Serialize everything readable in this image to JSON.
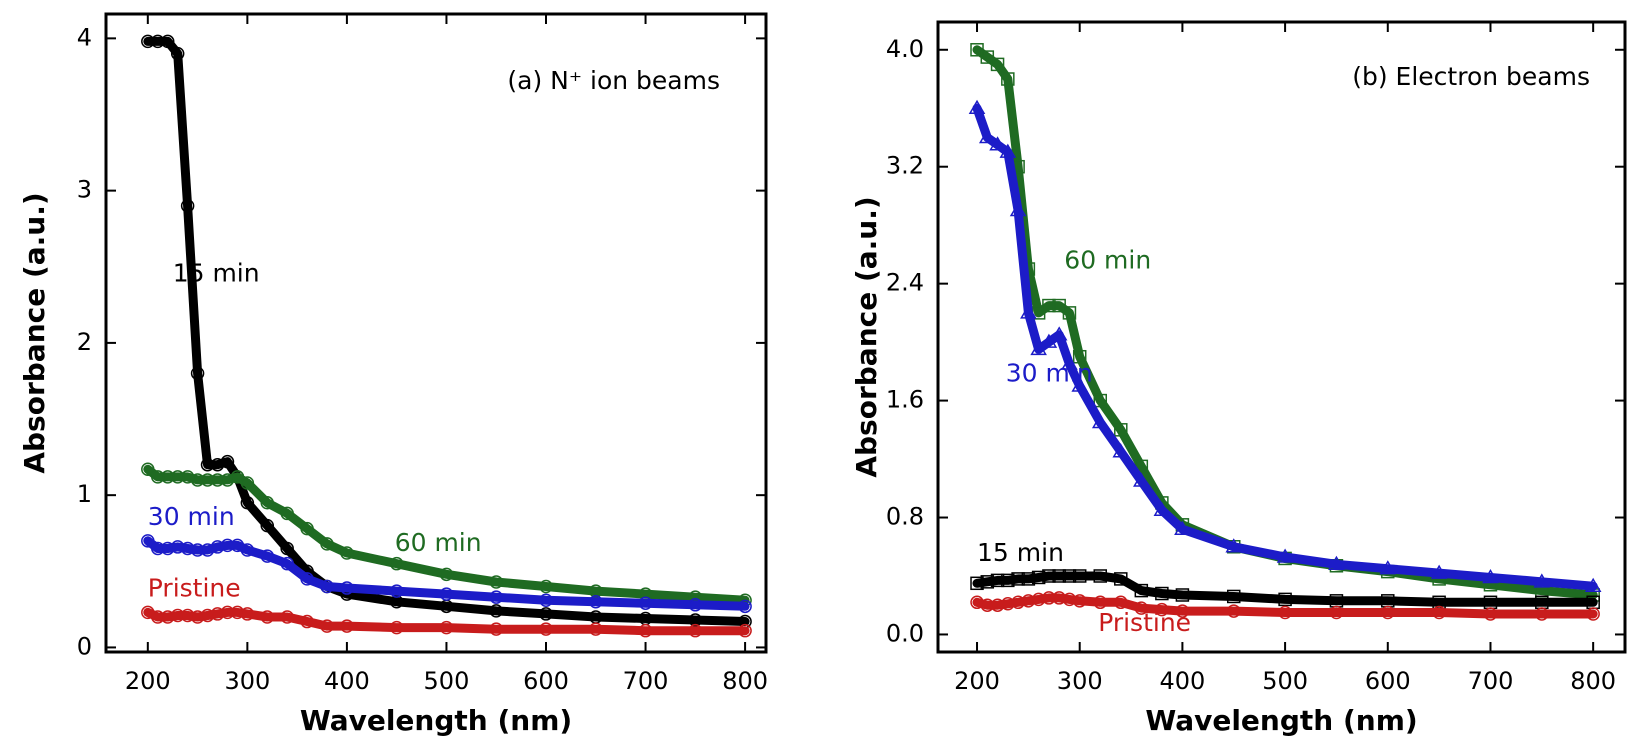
{
  "chart_data": [
    {
      "type": "line",
      "title": "(a) N⁺ ion beams",
      "x_label": "Wavelength (nm)",
      "y_label": "Absorbance (a.u.)",
      "xlim": [
        158,
        821
      ],
      "ylim": [
        -0.03,
        4.16
      ],
      "xticks": [
        200,
        300,
        400,
        500,
        600,
        700,
        800
      ],
      "yticks": [
        0,
        1,
        2,
        3,
        4
      ],
      "x": [
        200,
        210,
        220,
        230,
        240,
        250,
        260,
        270,
        280,
        290,
        300,
        320,
        340,
        360,
        380,
        400,
        450,
        500,
        550,
        600,
        650,
        700,
        750,
        800
      ],
      "series": [
        {
          "name": "15 min",
          "color": "#000000",
          "marker": "circle",
          "values": [
            3.98,
            3.98,
            3.98,
            3.9,
            2.9,
            1.8,
            1.2,
            1.2,
            1.22,
            1.12,
            0.95,
            0.8,
            0.65,
            0.5,
            0.4,
            0.35,
            0.3,
            0.27,
            0.24,
            0.22,
            0.2,
            0.19,
            0.18,
            0.17
          ]
        },
        {
          "name": "60 min",
          "color": "#1f6b22",
          "marker": "circle",
          "values": [
            1.17,
            1.12,
            1.12,
            1.12,
            1.12,
            1.1,
            1.1,
            1.1,
            1.1,
            1.12,
            1.08,
            0.95,
            0.88,
            0.78,
            0.68,
            0.62,
            0.55,
            0.48,
            0.43,
            0.4,
            0.37,
            0.35,
            0.33,
            0.31
          ]
        },
        {
          "name": "30 min",
          "color": "#1c1cc8",
          "marker": "circle",
          "values": [
            0.7,
            0.65,
            0.65,
            0.66,
            0.65,
            0.64,
            0.64,
            0.66,
            0.67,
            0.67,
            0.64,
            0.6,
            0.55,
            0.45,
            0.4,
            0.39,
            0.37,
            0.35,
            0.33,
            0.31,
            0.3,
            0.29,
            0.28,
            0.27
          ]
        },
        {
          "name": "Pristine",
          "color": "#c81c1c",
          "marker": "circle",
          "values": [
            0.23,
            0.2,
            0.2,
            0.21,
            0.21,
            0.2,
            0.21,
            0.22,
            0.23,
            0.23,
            0.22,
            0.2,
            0.2,
            0.17,
            0.14,
            0.14,
            0.13,
            0.13,
            0.12,
            0.12,
            0.12,
            0.11,
            0.11,
            0.11
          ]
        }
      ],
      "annotations": [
        {
          "text": "15 min",
          "color": "#000000"
        },
        {
          "text": "30 min",
          "color": "#1c1cc8"
        },
        {
          "text": "60 min",
          "color": "#1f6b22"
        },
        {
          "text": "Pristine",
          "color": "#c81c1c"
        }
      ]
    },
    {
      "type": "line",
      "title": "(b) Electron beams",
      "x_label": "Wavelength (nm)",
      "y_label": "Absorbance (a.u.)",
      "xlim": [
        162,
        831
      ],
      "ylim": [
        -0.12,
        4.19
      ],
      "xticks": [
        200,
        300,
        400,
        500,
        600,
        700,
        800
      ],
      "yticks": [
        {
          "value": 0,
          "label": "0.0"
        },
        0.8,
        1.6,
        2.4,
        3.2,
        {
          "value": 4,
          "label": "4.0"
        }
      ],
      "x": [
        200,
        210,
        220,
        230,
        240,
        250,
        260,
        270,
        280,
        290,
        300,
        320,
        340,
        360,
        380,
        400,
        450,
        500,
        550,
        600,
        650,
        700,
        750,
        800
      ],
      "series": [
        {
          "name": "60 min",
          "color": "#1f6b22",
          "marker": "square",
          "values": [
            4.0,
            3.95,
            3.9,
            3.8,
            3.2,
            2.5,
            2.2,
            2.25,
            2.25,
            2.2,
            1.9,
            1.6,
            1.4,
            1.15,
            0.9,
            0.75,
            0.6,
            0.52,
            0.47,
            0.43,
            0.38,
            0.34,
            0.3,
            0.27
          ]
        },
        {
          "name": "30 min",
          "color": "#1c1cc8",
          "marker": "triangle",
          "values": [
            3.6,
            3.4,
            3.35,
            3.3,
            2.9,
            2.2,
            1.95,
            2.0,
            2.05,
            1.85,
            1.7,
            1.45,
            1.25,
            1.05,
            0.85,
            0.72,
            0.6,
            0.53,
            0.48,
            0.45,
            0.42,
            0.39,
            0.36,
            0.33
          ]
        },
        {
          "name": "15 min",
          "color": "#000000",
          "marker": "square",
          "values": [
            0.35,
            0.36,
            0.37,
            0.37,
            0.38,
            0.38,
            0.39,
            0.4,
            0.4,
            0.4,
            0.4,
            0.4,
            0.38,
            0.3,
            0.28,
            0.27,
            0.26,
            0.24,
            0.23,
            0.23,
            0.22,
            0.22,
            0.22,
            0.22
          ]
        },
        {
          "name": "Pristine",
          "color": "#c81c1c",
          "marker": "circle",
          "values": [
            0.22,
            0.2,
            0.2,
            0.21,
            0.22,
            0.23,
            0.24,
            0.25,
            0.25,
            0.24,
            0.23,
            0.22,
            0.22,
            0.18,
            0.17,
            0.16,
            0.16,
            0.15,
            0.15,
            0.15,
            0.15,
            0.14,
            0.14,
            0.14
          ]
        }
      ],
      "annotations": [
        {
          "text": "60 min",
          "color": "#1f6b22"
        },
        {
          "text": "30 min",
          "color": "#1c1cc8"
        },
        {
          "text": "15 min",
          "color": "#000000"
        },
        {
          "text": "Pristine",
          "color": "#c81c1c"
        }
      ]
    }
  ]
}
